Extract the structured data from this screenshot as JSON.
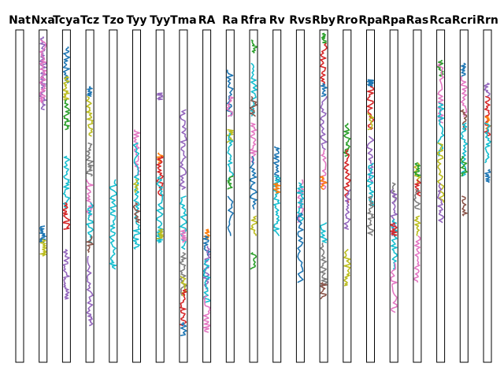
{
  "chart_data": {
    "type": "line",
    "title": "",
    "xlabel": "",
    "ylabel": "",
    "ylim": [
      0,
      1
    ],
    "grid": false,
    "legend": "none",
    "palette": [
      "#1f77b4",
      "#ff7f0e",
      "#2ca02c",
      "#d62728",
      "#9467bd",
      "#8c564b",
      "#e377c2",
      "#7f7f7f",
      "#bcbd22",
      "#17becf"
    ],
    "panels": [
      {
        "label": "Nat",
        "series": []
      },
      {
        "label": "Nxa",
        "series": [
          {
            "color": "#9467bd",
            "values": [
              0.98,
              0.93,
              0.88,
              0.84,
              0.8,
              0.76
            ]
          },
          {
            "color": "#e377c2",
            "values": [
              0.97,
              0.92,
              0.86,
              0.81,
              0.78
            ]
          },
          {
            "color": "#1f77b4",
            "values": [
              0.41,
              0.38,
              0.36
            ]
          },
          {
            "color": "#bcbd22",
            "values": [
              0.37,
              0.34,
              0.32
            ]
          }
        ]
      },
      {
        "label": "Tcya",
        "series": [
          {
            "color": "#1f77b4",
            "values": [
              0.95,
              0.9,
              0.84
            ]
          },
          {
            "color": "#bcbd22",
            "values": [
              0.86,
              0.82,
              0.79
            ]
          },
          {
            "color": "#2ca02c",
            "values": [
              0.79,
              0.74,
              0.7
            ]
          },
          {
            "color": "#17becf",
            "values": [
              0.62,
              0.57,
              0.52,
              0.46
            ]
          },
          {
            "color": "#d62728",
            "values": [
              0.48,
              0.44,
              0.4
            ]
          },
          {
            "color": "#9467bd",
            "values": [
              0.34,
              0.28,
              0.23,
              0.19
            ]
          }
        ]
      },
      {
        "label": "Tcz",
        "series": [
          {
            "color": "#1f77b4",
            "values": [
              0.83,
              0.8
            ]
          },
          {
            "color": "#bcbd22",
            "values": [
              0.8,
              0.74,
              0.68
            ]
          },
          {
            "color": "#7f7f7f",
            "values": [
              0.66,
              0.6,
              0.56
            ]
          },
          {
            "color": "#e377c2",
            "values": [
              0.55,
              0.49,
              0.44
            ]
          },
          {
            "color": "#17becf",
            "values": [
              0.48,
              0.42,
              0.36
            ]
          },
          {
            "color": "#8c564b",
            "values": [
              0.38,
              0.33
            ]
          },
          {
            "color": "#9467bd",
            "values": [
              0.32,
              0.23,
              0.15,
              0.11
            ]
          }
        ]
      },
      {
        "label": "Tzo",
        "series": [
          {
            "color": "#17becf",
            "values": [
              0.55,
              0.47,
              0.4,
              0.32,
              0.28
            ]
          }
        ]
      },
      {
        "label": "Tyy",
        "series": [
          {
            "color": "#e377c2",
            "values": [
              0.7,
              0.63,
              0.56
            ]
          },
          {
            "color": "#17becf",
            "values": [
              0.66,
              0.57,
              0.48,
              0.4,
              0.34
            ]
          },
          {
            "color": "#bcbd22",
            "values": [
              0.55,
              0.51
            ]
          },
          {
            "color": "#8c564b",
            "values": [
              0.48,
              0.42
            ]
          }
        ]
      },
      {
        "label": "Tyy",
        "series": [
          {
            "color": "#9467bd",
            "values": [
              0.81,
              0.79
            ]
          },
          {
            "color": "#ff7f0e",
            "values": [
              0.63,
              0.6
            ]
          },
          {
            "color": "#d62728",
            "values": [
              0.62,
              0.56,
              0.5
            ]
          },
          {
            "color": "#17becf",
            "values": [
              0.56,
              0.48,
              0.4,
              0.36
            ]
          },
          {
            "color": "#bcbd22",
            "values": [
              0.4,
              0.37
            ]
          }
        ]
      },
      {
        "label": "Tma",
        "series": [
          {
            "color": "#9467bd",
            "values": [
              0.76,
              0.68,
              0.6,
              0.52
            ]
          },
          {
            "color": "#17becf",
            "values": [
              0.5,
              0.42,
              0.34
            ]
          },
          {
            "color": "#e377c2",
            "values": [
              0.4,
              0.36
            ]
          },
          {
            "color": "#7f7f7f",
            "values": [
              0.33,
              0.27,
              0.2
            ]
          },
          {
            "color": "#bcbd22",
            "values": [
              0.26,
              0.2
            ]
          },
          {
            "color": "#d62728",
            "values": [
              0.22,
              0.16,
              0.11
            ]
          },
          {
            "color": "#1f77b4",
            "values": [
              0.12,
              0.08
            ]
          }
        ]
      },
      {
        "label": "RA",
        "series": [
          {
            "color": "#ff7f0e",
            "values": [
              0.4,
              0.37
            ]
          },
          {
            "color": "#1f77b4",
            "values": [
              0.38,
              0.32
            ]
          },
          {
            "color": "#9467bd",
            "values": [
              0.35,
              0.28,
              0.22
            ]
          },
          {
            "color": "#17becf",
            "values": [
              0.31,
              0.24,
              0.18
            ]
          },
          {
            "color": "#e377c2",
            "values": [
              0.2,
              0.14,
              0.09
            ]
          }
        ]
      },
      {
        "label": "Ra",
        "series": [
          {
            "color": "#1f77b4",
            "values": [
              0.88,
              0.8,
              0.74
            ]
          },
          {
            "color": "#e377c2",
            "values": [
              0.8,
              0.74
            ]
          },
          {
            "color": "#bcbd22",
            "values": [
              0.7,
              0.66
            ]
          },
          {
            "color": "#17becf",
            "values": [
              0.69,
              0.62,
              0.55
            ]
          },
          {
            "color": "#2ca02c",
            "values": [
              0.56,
              0.52
            ]
          },
          {
            "color": "#1f77b4",
            "values": [
              0.5,
              0.38
            ]
          }
        ]
      },
      {
        "label": "Rfra",
        "series": [
          {
            "color": "#2ca02c",
            "values": [
              0.97,
              0.93
            ]
          },
          {
            "color": "#17becf",
            "values": [
              0.9,
              0.82,
              0.74
            ]
          },
          {
            "color": "#8c564b",
            "values": [
              0.8,
              0.74
            ]
          },
          {
            "color": "#e377c2",
            "values": [
              0.72,
              0.66,
              0.6
            ]
          },
          {
            "color": "#1f77b4",
            "values": [
              0.62,
              0.54,
              0.46
            ]
          },
          {
            "color": "#bcbd22",
            "values": [
              0.44,
              0.38
            ]
          },
          {
            "color": "#2ca02c",
            "values": [
              0.33,
              0.28
            ]
          }
        ]
      },
      {
        "label": "Rv",
        "series": [
          {
            "color": "#1f77b4",
            "values": [
              0.65,
              0.6,
              0.54
            ]
          },
          {
            "color": "#17becf",
            "values": [
              0.56,
              0.5,
              0.44,
              0.38
            ]
          },
          {
            "color": "#ff7f0e",
            "values": [
              0.54,
              0.51
            ]
          }
        ]
      },
      {
        "label": "Rvs",
        "series": [
          {
            "color": "#e377c2",
            "values": [
              0.55,
              0.48,
              0.42
            ]
          },
          {
            "color": "#17becf",
            "values": [
              0.54,
              0.48,
              0.42
            ]
          },
          {
            "color": "#1f77b4",
            "values": [
              0.45,
              0.36,
              0.24
            ]
          }
        ]
      },
      {
        "label": "Rby",
        "series": [
          {
            "color": "#2ca02c",
            "values": [
              0.99,
              0.96
            ]
          },
          {
            "color": "#d62728",
            "values": [
              0.96,
              0.89,
              0.83
            ]
          },
          {
            "color": "#1f77b4",
            "values": [
              0.84,
              0.8
            ]
          },
          {
            "color": "#9467bd",
            "values": [
              0.8,
              0.72,
              0.64
            ]
          },
          {
            "color": "#e377c2",
            "values": [
              0.64,
              0.58,
              0.52
            ]
          },
          {
            "color": "#ff7f0e",
            "values": [
              0.56,
              0.52
            ]
          },
          {
            "color": "#17becf",
            "values": [
              0.42,
              0.36
            ]
          },
          {
            "color": "#7f7f7f",
            "values": [
              0.36,
              0.28,
              0.22
            ]
          },
          {
            "color": "#8c564b",
            "values": [
              0.24,
              0.19
            ]
          }
        ]
      },
      {
        "label": "Rro",
        "series": [
          {
            "color": "#2ca02c",
            "values": [
              0.72,
              0.66,
              0.62
            ]
          },
          {
            "color": "#d62728",
            "values": [
              0.64,
              0.56,
              0.48
            ]
          },
          {
            "color": "#9467bd",
            "values": [
              0.52,
              0.46,
              0.4
            ]
          },
          {
            "color": "#bcbd22",
            "values": [
              0.34,
              0.27,
              0.23
            ]
          }
        ]
      },
      {
        "label": "Rpa",
        "series": [
          {
            "color": "#1f77b4",
            "values": [
              0.85,
              0.83
            ]
          },
          {
            "color": "#d62728",
            "values": [
              0.83,
              0.76,
              0.7
            ]
          },
          {
            "color": "#bcbd22",
            "values": [
              0.75,
              0.7
            ]
          },
          {
            "color": "#9467bd",
            "values": [
              0.68,
              0.6,
              0.54
            ]
          },
          {
            "color": "#17becf",
            "values": [
              0.6,
              0.53,
              0.47
            ]
          },
          {
            "color": "#7f7f7f",
            "values": [
              0.5,
              0.44,
              0.38
            ]
          }
        ]
      },
      {
        "label": "Rpa",
        "series": [
          {
            "color": "#7f7f7f",
            "values": [
              0.54,
              0.48
            ]
          },
          {
            "color": "#9467bd",
            "values": [
              0.52,
              0.45,
              0.38
            ]
          },
          {
            "color": "#17becf",
            "values": [
              0.43,
              0.35,
              0.28
            ]
          },
          {
            "color": "#d62728",
            "values": [
              0.42,
              0.38
            ]
          },
          {
            "color": "#e377c2",
            "values": [
              0.3,
              0.23,
              0.15
            ]
          }
        ]
      },
      {
        "label": "Ras",
        "series": [
          {
            "color": "#bcbd22",
            "values": [
              0.6,
              0.54
            ]
          },
          {
            "color": "#2ca02c",
            "values": [
              0.6,
              0.56
            ]
          },
          {
            "color": "#d62728",
            "values": [
              0.55,
              0.5
            ]
          },
          {
            "color": "#7f7f7f",
            "values": [
              0.52,
              0.46
            ]
          },
          {
            "color": "#bcbd22",
            "values": [
              0.44,
              0.38
            ]
          },
          {
            "color": "#e377c2",
            "values": [
              0.38,
              0.3,
              0.24
            ]
          }
        ]
      },
      {
        "label": "Rca",
        "series": [
          {
            "color": "#2ca02c",
            "values": [
              0.91,
              0.86
            ]
          },
          {
            "color": "#e377c2",
            "values": [
              0.9,
              0.8,
              0.72
            ]
          },
          {
            "color": "#17becf",
            "values": [
              0.78,
              0.7,
              0.62
            ]
          },
          {
            "color": "#bcbd22",
            "values": [
              0.66,
              0.58,
              0.48
            ]
          },
          {
            "color": "#9467bd",
            "values": [
              0.54,
              0.47,
              0.42
            ]
          }
        ]
      },
      {
        "label": "Rcri",
        "series": [
          {
            "color": "#1f77b4",
            "values": [
              0.9,
              0.86
            ]
          },
          {
            "color": "#e377c2",
            "values": [
              0.86,
              0.8,
              0.74
            ]
          },
          {
            "color": "#8c564b",
            "values": [
              0.76,
              0.7
            ]
          },
          {
            "color": "#17becf",
            "values": [
              0.72,
              0.64,
              0.56
            ]
          },
          {
            "color": "#2ca02c",
            "values": [
              0.62,
              0.56
            ]
          },
          {
            "color": "#8c564b",
            "values": [
              0.5,
              0.44
            ]
          }
        ]
      },
      {
        "label": "Rrn",
        "series": [
          {
            "color": "#9467bd",
            "values": [
              0.84,
              0.8
            ]
          },
          {
            "color": "#d62728",
            "values": [
              0.8,
              0.74,
              0.68
            ]
          },
          {
            "color": "#ff7f0e",
            "values": [
              0.74,
              0.7
            ]
          },
          {
            "color": "#17becf",
            "values": [
              0.72,
              0.66,
              0.6
            ]
          },
          {
            "color": "#1f77b4",
            "values": [
              0.58,
              0.54
            ]
          }
        ]
      }
    ]
  }
}
